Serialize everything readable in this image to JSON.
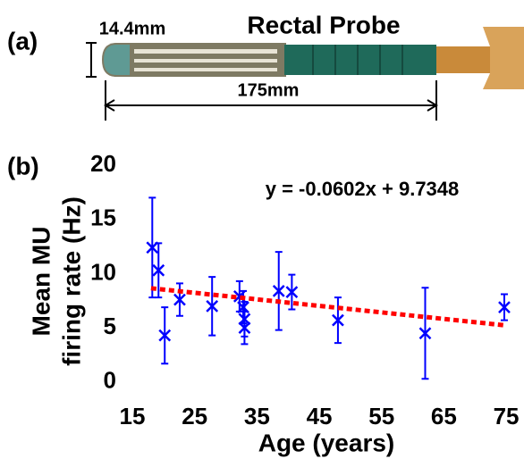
{
  "panel_a": {
    "label": "(a)",
    "title": "Rectal Probe",
    "width_label": "14.4mm",
    "length_label": "175mm"
  },
  "chart_data": {
    "type": "scatter",
    "panel_label": "(b)",
    "xlabel": "Age (years)",
    "ylabel": [
      "Mean MU",
      "firing rate (Hz)"
    ],
    "annotation": "y = -0.0602x + 9.7348",
    "xlim": [
      15,
      77
    ],
    "ylim": [
      -1,
      20
    ],
    "xticks": [
      15,
      25,
      35,
      45,
      55,
      65,
      75
    ],
    "yticks": [
      0,
      5,
      10,
      15,
      20
    ],
    "series": [
      {
        "color": "#0000ff",
        "x": [
          18.2,
          19.2,
          20.2,
          22.6,
          27.8,
          32.2,
          32.8,
          33.0,
          33.0,
          38.5,
          40.6,
          48,
          62,
          74.7
        ],
        "values": [
          12.4,
          10.3,
          4.3,
          7.6,
          7.0,
          7.9,
          6.9,
          5.8,
          5.0,
          8.4,
          8.3,
          5.7,
          4.5,
          6.9
        ],
        "errors": [
          4.6,
          2.5,
          2.6,
          1.5,
          2.7,
          1.4,
          1.5,
          1.6,
          1.5,
          3.6,
          1.6,
          2.1,
          4.2,
          1.2
        ]
      },
      {
        "color": "#ff0000",
        "x": [
          18,
          75
        ],
        "values": [
          8.65,
          5.22
        ]
      }
    ]
  }
}
